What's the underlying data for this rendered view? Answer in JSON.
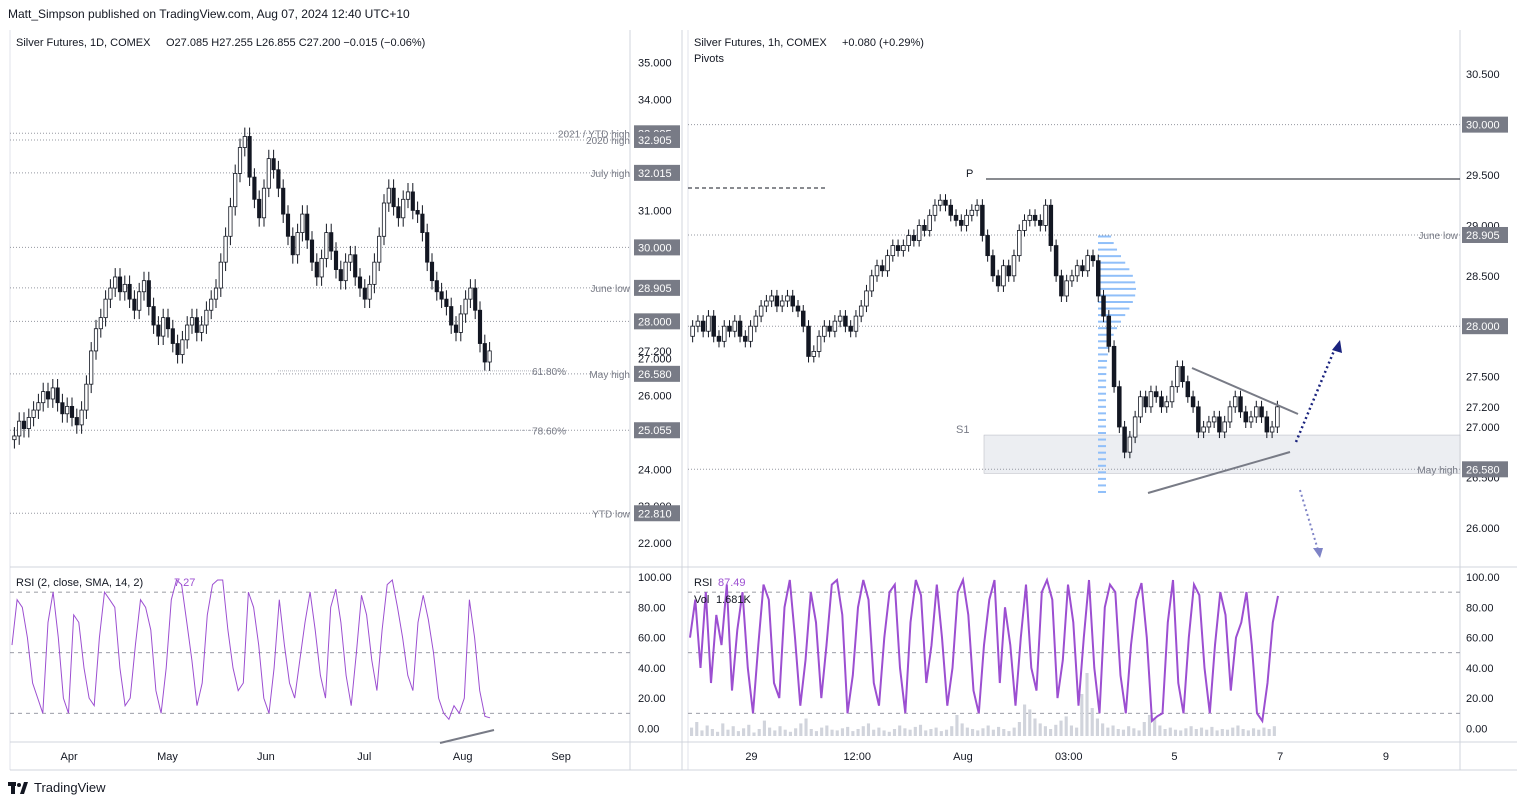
{
  "header": {
    "publisher": "Matt_Simpson published on TradingView.com, Aug 07, 2024 12:40 UTC+10"
  },
  "footer": {
    "brand": "TradingView"
  },
  "colors": {
    "candle": "#131722",
    "rsi": "#9c4fd1",
    "guide_line": "#9598a1",
    "price_box": "#787b86",
    "arrow": "#1a237e",
    "zone": "#d1d4dc"
  },
  "chart_data": [
    {
      "type": "candlestick",
      "title": "Silver Futures, 1D, COMEX",
      "ohlc_text": "O27.085  H27.255  L26.855  C27.200  −0.015 (−0.06%)",
      "y_ticks": [
        "35.000",
        "34.000",
        "33.000",
        "32.000",
        "31.000",
        "30.000",
        "29.000",
        "28.000",
        "27.000",
        "26.000",
        "25.000",
        "24.000",
        "23.000",
        "22.000"
      ],
      "ylim": [
        21.6,
        35.5
      ],
      "x_ticks": [
        "Apr",
        "May",
        "Jun",
        "Jul",
        "Aug",
        "Sep"
      ],
      "levels": [
        {
          "label": "2021 / YTD high",
          "price": "33.085",
          "value": 33.085
        },
        {
          "label": "2020 high",
          "price": "32.905",
          "value": 32.905
        },
        {
          "label": "July high",
          "price": "32.015",
          "value": 32.015
        },
        {
          "label": "",
          "price": "30.000",
          "value": 30.0
        },
        {
          "label": "June low",
          "price": "28.905",
          "value": 28.905
        },
        {
          "label": "",
          "price": "28.000",
          "value": 28.0
        },
        {
          "label": "May high",
          "price": "26.580",
          "value": 26.58
        },
        {
          "label": "",
          "price": "25.055",
          "value": 25.055
        },
        {
          "label": "YTD low",
          "price": "22.810",
          "value": 22.81
        }
      ],
      "fib_labels": [
        {
          "label": "61.80%",
          "value": 26.66
        },
        {
          "label": "78.60%",
          "value": 25.05
        }
      ],
      "last_price": "27.200",
      "closes": [
        24.9,
        25.3,
        25.1,
        25.4,
        25.6,
        25.8,
        26.1,
        25.9,
        26.2,
        25.8,
        25.5,
        25.7,
        25.4,
        25.2,
        25.6,
        26.3,
        27.2,
        27.8,
        28.1,
        28.6,
        28.9,
        29.2,
        28.8,
        29.0,
        28.6,
        28.3,
        28.8,
        29.1,
        28.4,
        27.9,
        27.6,
        28.1,
        27.8,
        27.4,
        27.1,
        27.5,
        27.9,
        28.1,
        27.7,
        27.9,
        28.3,
        28.6,
        28.9,
        29.6,
        30.3,
        31.1,
        32.0,
        32.7,
        33.0,
        31.9,
        31.3,
        30.8,
        31.6,
        32.4,
        32.1,
        31.6,
        30.9,
        30.3,
        29.8,
        30.4,
        30.9,
        30.2,
        29.6,
        29.2,
        29.7,
        30.4,
        29.9,
        29.4,
        29.1,
        29.6,
        29.8,
        29.2,
        28.9,
        28.6,
        29.0,
        29.6,
        30.3,
        31.2,
        31.6,
        31.1,
        30.8,
        31.3,
        31.5,
        31.0,
        30.9,
        30.4,
        29.6,
        29.1,
        28.8,
        28.6,
        28.4,
        27.9,
        27.7,
        28.2,
        28.6,
        28.9,
        28.3,
        27.4,
        26.9,
        27.2
      ]
    },
    {
      "type": "line",
      "title": "RSI (2, close, SMA, 14, 2)",
      "value_text": "7.27",
      "y_ticks": [
        "100.00",
        "80.00",
        "60.00",
        "40.00",
        "20.00",
        "0.00"
      ],
      "ylim": [
        -5,
        100
      ],
      "levels": [
        90,
        50,
        10
      ],
      "values": [
        55,
        85,
        80,
        60,
        30,
        20,
        10,
        70,
        90,
        60,
        20,
        10,
        75,
        70,
        40,
        20,
        15,
        60,
        90,
        85,
        80,
        40,
        15,
        20,
        55,
        85,
        80,
        65,
        25,
        10,
        40,
        85,
        98,
        95,
        70,
        45,
        15,
        30,
        75,
        95,
        98,
        98,
        65,
        40,
        25,
        30,
        90,
        80,
        55,
        20,
        10,
        40,
        85,
        55,
        30,
        20,
        45,
        70,
        90,
        65,
        35,
        20,
        80,
        92,
        70,
        35,
        15,
        50,
        88,
        75,
        45,
        25,
        65,
        95,
        98,
        80,
        60,
        35,
        25,
        70,
        88,
        72,
        50,
        20,
        10,
        6,
        15,
        10,
        20,
        85,
        60,
        25,
        8,
        7
      ]
    },
    {
      "type": "candlestick",
      "title": "Silver Futures, 1h, COMEX",
      "change_text": "+0.080 (+0.29%)",
      "indicator": "Pivots",
      "y_ticks": [
        "30.500",
        "30.000",
        "29.500",
        "29.000",
        "28.500",
        "28.000",
        "27.500",
        "27.000",
        "26.500",
        "26.000"
      ],
      "ylim": [
        25.7,
        30.8
      ],
      "x_ticks": [
        "29",
        "12:00",
        "Aug",
        "03:00",
        "5",
        "7",
        "9"
      ],
      "levels": [
        {
          "label": "",
          "price": "30.000",
          "value": 30.0
        },
        {
          "label": "June low",
          "price": "28.905",
          "value": 28.905
        },
        {
          "label": "",
          "price": "28.000",
          "value": 28.0
        },
        {
          "label": "May high",
          "price": "26.580",
          "value": 26.58
        }
      ],
      "pivot_labels": [
        "P",
        "S1"
      ],
      "pivot_P": 29.46,
      "pivot_S1": 26.92,
      "last_price": "27.200",
      "closes": [
        28.0,
        28.05,
        27.95,
        28.1,
        27.9,
        27.85,
        28.0,
        27.95,
        28.05,
        27.9,
        27.85,
        28.0,
        28.1,
        28.2,
        28.25,
        28.3,
        28.2,
        28.25,
        28.3,
        28.2,
        28.15,
        28.0,
        27.7,
        27.75,
        27.9,
        28.0,
        27.95,
        28.05,
        28.1,
        28.0,
        27.95,
        28.1,
        28.2,
        28.35,
        28.5,
        28.6,
        28.55,
        28.7,
        28.8,
        28.75,
        28.8,
        28.9,
        28.85,
        29.0,
        28.95,
        29.1,
        29.2,
        29.25,
        29.2,
        29.1,
        29.05,
        29.0,
        29.1,
        29.15,
        29.2,
        28.9,
        28.7,
        28.5,
        28.4,
        28.6,
        28.5,
        28.7,
        28.95,
        29.05,
        29.1,
        29.05,
        29.0,
        29.2,
        28.8,
        28.5,
        28.3,
        28.45,
        28.5,
        28.6,
        28.55,
        28.7,
        28.65,
        28.3,
        28.1,
        27.8,
        27.4,
        27.0,
        26.75,
        26.9,
        27.1,
        27.3,
        27.2,
        27.35,
        27.3,
        27.2,
        27.25,
        27.4,
        27.6,
        27.45,
        27.3,
        27.2,
        26.95,
        27.0,
        27.05,
        27.1,
        26.95,
        27.05,
        27.2,
        27.3,
        27.15,
        27.05,
        27.1,
        27.2,
        27.1,
        26.95,
        27.0,
        27.2
      ]
    },
    {
      "type": "line",
      "title": "RSI",
      "value_text": "87.49",
      "volume_label": "Vol",
      "volume_text": "1.681K",
      "y_ticks": [
        "100.00",
        "80.00",
        "60.00",
        "40.00",
        "20.00",
        "0.00"
      ],
      "ylim": [
        -5,
        100
      ],
      "levels": [
        90,
        50,
        10
      ],
      "values": [
        60,
        85,
        40,
        90,
        30,
        75,
        55,
        95,
        25,
        65,
        90,
        40,
        10,
        55,
        95,
        85,
        30,
        20,
        80,
        98,
        60,
        15,
        45,
        90,
        70,
        20,
        55,
        95,
        98,
        75,
        10,
        35,
        80,
        98,
        85,
        30,
        15,
        60,
        90,
        95,
        40,
        10,
        70,
        98,
        88,
        30,
        55,
        95,
        60,
        15,
        40,
        90,
        98,
        75,
        25,
        10,
        55,
        85,
        98,
        30,
        80,
        55,
        15,
        60,
        95,
        40,
        25,
        90,
        98,
        85,
        20,
        45,
        95,
        70,
        15,
        60,
        98,
        40,
        10,
        80,
        95,
        90,
        35,
        10,
        55,
        85,
        96,
        60,
        5,
        8,
        10,
        70,
        98,
        30,
        10,
        60,
        95,
        88,
        40,
        10,
        55,
        90,
        75,
        25,
        60,
        70,
        90,
        55,
        10,
        5,
        30,
        70,
        87.49
      ],
      "volume": [
        12,
        20,
        8,
        15,
        10,
        6,
        18,
        9,
        14,
        7,
        11,
        16,
        5,
        10,
        22,
        12,
        8,
        14,
        9,
        6,
        11,
        18,
        25,
        10,
        7,
        12,
        15,
        9,
        8,
        11,
        13,
        7,
        10,
        14,
        18,
        9,
        12,
        8,
        6,
        10,
        15,
        11,
        9,
        13,
        16,
        8,
        10,
        12,
        7,
        9,
        14,
        30,
        18,
        12,
        10,
        8,
        11,
        15,
        9,
        13,
        10,
        7,
        12,
        20,
        45,
        38,
        25,
        18,
        14,
        10,
        16,
        22,
        28,
        15,
        12,
        60,
        90,
        40,
        25,
        18,
        12,
        15,
        10,
        9,
        14,
        11,
        8,
        20,
        30,
        24,
        15,
        10,
        12,
        9,
        8,
        11,
        14,
        10,
        12,
        9,
        13,
        8,
        10,
        9,
        12,
        15,
        10,
        8,
        11,
        9,
        12,
        10,
        14
      ]
    }
  ]
}
